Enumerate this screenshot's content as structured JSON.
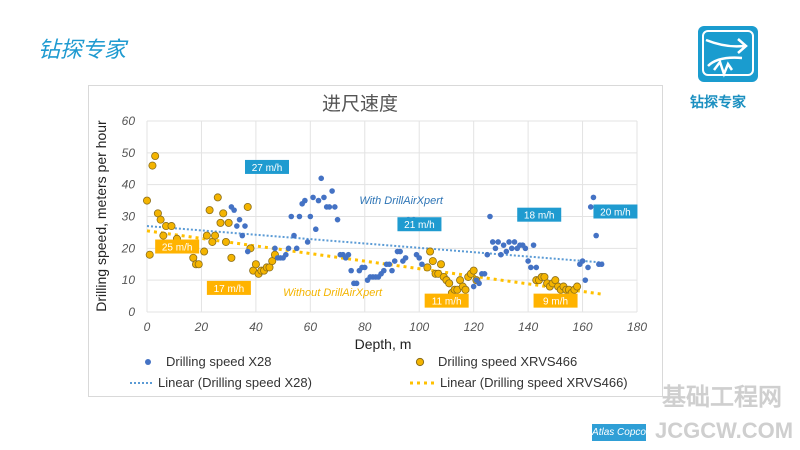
{
  "slide": {
    "title": "钻探专家",
    "logo_text": "钻探专家",
    "watermark": "基础工程网",
    "watermark_url": "JCGCW.COM",
    "partner_logo": "Atlas Copco"
  },
  "colors": {
    "x28": "#4472c4",
    "xrvs466": "#f4b400",
    "trend_x28": "#5b9bd5",
    "trend_xrvs": "#ffc000",
    "callout_blue": "#1f9bd0",
    "callout_orange": "#ffb300"
  },
  "chart_data": {
    "type": "scatter",
    "title": "进尺速度",
    "xlabel": "Depth, m",
    "ylabel": "Drilling speed, meters per hour",
    "xlim": [
      0,
      180
    ],
    "ylim": [
      0,
      60
    ],
    "xticks": [
      "0",
      "20",
      "40",
      "60",
      "80",
      "100",
      "120",
      "140",
      "160",
      "180"
    ],
    "yticks": [
      "0",
      "10",
      "20",
      "30",
      "40",
      "50",
      "60"
    ],
    "grid": true,
    "legend_placement": "bottom",
    "legend": [
      "Drilling speed X28",
      "Drilling speed XRVS466",
      "Linear (Drilling speed X28)",
      "Linear (Drilling speed XRVS466)"
    ],
    "annotations_text": {
      "with": "With DrillAirXpert",
      "without": "Without DrillAirXpert"
    },
    "callouts_blue": [
      "27 m/h",
      "21 m/h",
      "18 m/h",
      "20 m/h"
    ],
    "callouts_orange": [
      "25 m/h",
      "17 m/h",
      "11 m/h",
      "9 m/h"
    ],
    "series": [
      {
        "name": "Drilling speed X28",
        "points": [
          [
            31,
            33
          ],
          [
            32,
            32
          ],
          [
            33,
            27
          ],
          [
            34,
            29
          ],
          [
            35,
            24
          ],
          [
            36,
            27
          ],
          [
            37,
            19
          ],
          [
            47,
            20
          ],
          [
            48,
            17
          ],
          [
            49,
            17
          ],
          [
            50,
            17
          ],
          [
            51,
            18
          ],
          [
            52,
            20
          ],
          [
            53,
            30
          ],
          [
            54,
            24
          ],
          [
            55,
            20
          ],
          [
            56,
            30
          ],
          [
            57,
            34
          ],
          [
            58,
            35
          ],
          [
            59,
            22
          ],
          [
            60,
            30
          ],
          [
            61,
            36
          ],
          [
            62,
            26
          ],
          [
            63,
            35
          ],
          [
            64,
            42
          ],
          [
            65,
            36
          ],
          [
            66,
            33
          ],
          [
            67,
            33
          ],
          [
            68,
            38
          ],
          [
            69,
            33
          ],
          [
            70,
            29
          ],
          [
            71,
            18
          ],
          [
            72,
            18
          ],
          [
            73,
            17
          ],
          [
            74,
            18
          ],
          [
            75,
            13
          ],
          [
            76,
            9
          ],
          [
            77,
            9
          ],
          [
            78,
            13
          ],
          [
            79,
            14
          ],
          [
            80,
            14
          ],
          [
            81,
            10
          ],
          [
            82,
            11
          ],
          [
            83,
            11
          ],
          [
            84,
            11
          ],
          [
            85,
            11
          ],
          [
            86,
            12
          ],
          [
            87,
            13
          ],
          [
            88,
            15
          ],
          [
            89,
            15
          ],
          [
            90,
            13
          ],
          [
            91,
            16
          ],
          [
            92,
            19
          ],
          [
            93,
            19
          ],
          [
            94,
            16
          ],
          [
            95,
            17
          ],
          [
            96,
            29
          ],
          [
            98,
            29
          ],
          [
            99,
            18
          ],
          [
            100,
            17
          ],
          [
            101,
            15
          ],
          [
            120,
            8
          ],
          [
            121,
            10
          ],
          [
            122,
            9
          ],
          [
            123,
            12
          ],
          [
            124,
            12
          ],
          [
            125,
            18
          ],
          [
            126,
            30
          ],
          [
            127,
            22
          ],
          [
            128,
            20
          ],
          [
            129,
            22
          ],
          [
            130,
            18
          ],
          [
            131,
            21
          ],
          [
            132,
            19
          ],
          [
            133,
            22
          ],
          [
            134,
            20
          ],
          [
            135,
            22
          ],
          [
            136,
            20
          ],
          [
            137,
            21
          ],
          [
            138,
            21
          ],
          [
            139,
            20
          ],
          [
            140,
            16
          ],
          [
            141,
            14
          ],
          [
            142,
            21
          ],
          [
            143,
            14
          ],
          [
            159,
            15
          ],
          [
            160,
            16
          ],
          [
            161,
            10
          ],
          [
            162,
            14
          ],
          [
            163,
            33
          ],
          [
            164,
            36
          ],
          [
            165,
            24
          ],
          [
            166,
            15
          ],
          [
            167,
            15
          ]
        ]
      },
      {
        "name": "Drilling speed XRVS466",
        "points": [
          [
            0,
            35
          ],
          [
            1,
            18
          ],
          [
            2,
            46
          ],
          [
            3,
            49
          ],
          [
            4,
            31
          ],
          [
            5,
            29
          ],
          [
            6,
            24
          ],
          [
            7,
            27
          ],
          [
            9,
            27
          ],
          [
            10,
            21
          ],
          [
            11,
            23
          ],
          [
            13,
            21
          ],
          [
            15,
            21
          ],
          [
            17,
            17
          ],
          [
            18,
            15
          ],
          [
            19,
            15
          ],
          [
            21,
            19
          ],
          [
            22,
            24
          ],
          [
            23,
            32
          ],
          [
            24,
            22
          ],
          [
            25,
            24
          ],
          [
            26,
            36
          ],
          [
            27,
            28
          ],
          [
            28,
            31
          ],
          [
            29,
            22
          ],
          [
            30,
            28
          ],
          [
            31,
            17
          ],
          [
            37,
            33
          ],
          [
            38,
            20
          ],
          [
            39,
            13
          ],
          [
            40,
            15
          ],
          [
            41,
            12
          ],
          [
            42,
            13
          ],
          [
            43,
            13
          ],
          [
            44,
            14
          ],
          [
            45,
            14
          ],
          [
            46,
            16
          ],
          [
            47,
            18
          ],
          [
            103,
            14
          ],
          [
            104,
            19
          ],
          [
            105,
            16
          ],
          [
            106,
            12
          ],
          [
            107,
            12
          ],
          [
            108,
            15
          ],
          [
            109,
            11
          ],
          [
            110,
            10
          ],
          [
            111,
            9
          ],
          [
            112,
            6
          ],
          [
            113,
            7
          ],
          [
            114,
            7
          ],
          [
            115,
            10
          ],
          [
            116,
            8
          ],
          [
            117,
            7
          ],
          [
            118,
            11
          ],
          [
            119,
            12
          ],
          [
            120,
            13
          ],
          [
            121,
            10
          ],
          [
            143,
            10
          ],
          [
            144,
            10
          ],
          [
            145,
            11
          ],
          [
            146,
            11
          ],
          [
            147,
            9
          ],
          [
            148,
            8
          ],
          [
            149,
            9
          ],
          [
            150,
            10
          ],
          [
            151,
            8
          ],
          [
            152,
            7
          ],
          [
            153,
            8
          ],
          [
            154,
            7
          ],
          [
            155,
            7
          ],
          [
            156,
            6
          ],
          [
            157,
            7
          ],
          [
            158,
            8
          ]
        ]
      }
    ],
    "trendlines": [
      {
        "name": "Linear (Drilling speed X28)",
        "from": [
          0,
          27
        ],
        "to": [
          168,
          15.5
        ]
      },
      {
        "name": "Linear (Drilling speed XRVS466)",
        "from": [
          0,
          25.5
        ],
        "to": [
          168,
          5.5
        ]
      }
    ]
  }
}
